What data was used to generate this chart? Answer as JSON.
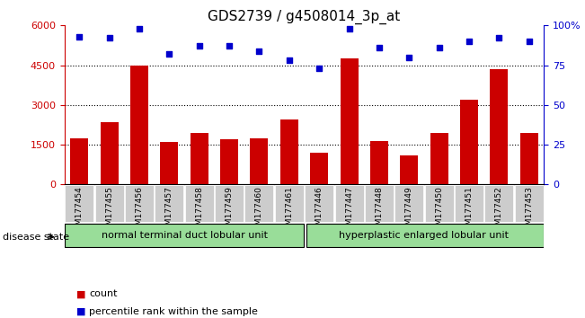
{
  "title": "GDS2739 / g4508014_3p_at",
  "categories": [
    "GSM177454",
    "GSM177455",
    "GSM177456",
    "GSM177457",
    "GSM177458",
    "GSM177459",
    "GSM177460",
    "GSM177461",
    "GSM177446",
    "GSM177447",
    "GSM177448",
    "GSM177449",
    "GSM177450",
    "GSM177451",
    "GSM177452",
    "GSM177453"
  ],
  "counts": [
    1750,
    2350,
    4500,
    1600,
    1950,
    1700,
    1750,
    2450,
    1200,
    4750,
    1650,
    1100,
    1950,
    3200,
    4350,
    1950
  ],
  "percentiles": [
    93,
    92,
    98,
    82,
    87,
    87,
    84,
    78,
    73,
    98,
    86,
    80,
    86,
    90,
    92,
    90
  ],
  "group1_label": "normal terminal duct lobular unit",
  "group2_label": "hyperplastic enlarged lobular unit",
  "group1_count": 8,
  "group2_count": 8,
  "bar_color": "#cc0000",
  "dot_color": "#0000cc",
  "ylim_left": [
    0,
    6000
  ],
  "ylim_right": [
    0,
    100
  ],
  "yticks_left": [
    0,
    1500,
    3000,
    4500,
    6000
  ],
  "yticks_right": [
    0,
    25,
    50,
    75,
    100
  ],
  "grid_values": [
    1500,
    3000,
    4500
  ],
  "background_color": "#ffffff",
  "group_bg_color": "#99dd99",
  "xticklabel_bg": "#cccccc",
  "disease_state_label": "disease state",
  "legend_count_label": "count",
  "legend_percentile_label": "percentile rank within the sample"
}
